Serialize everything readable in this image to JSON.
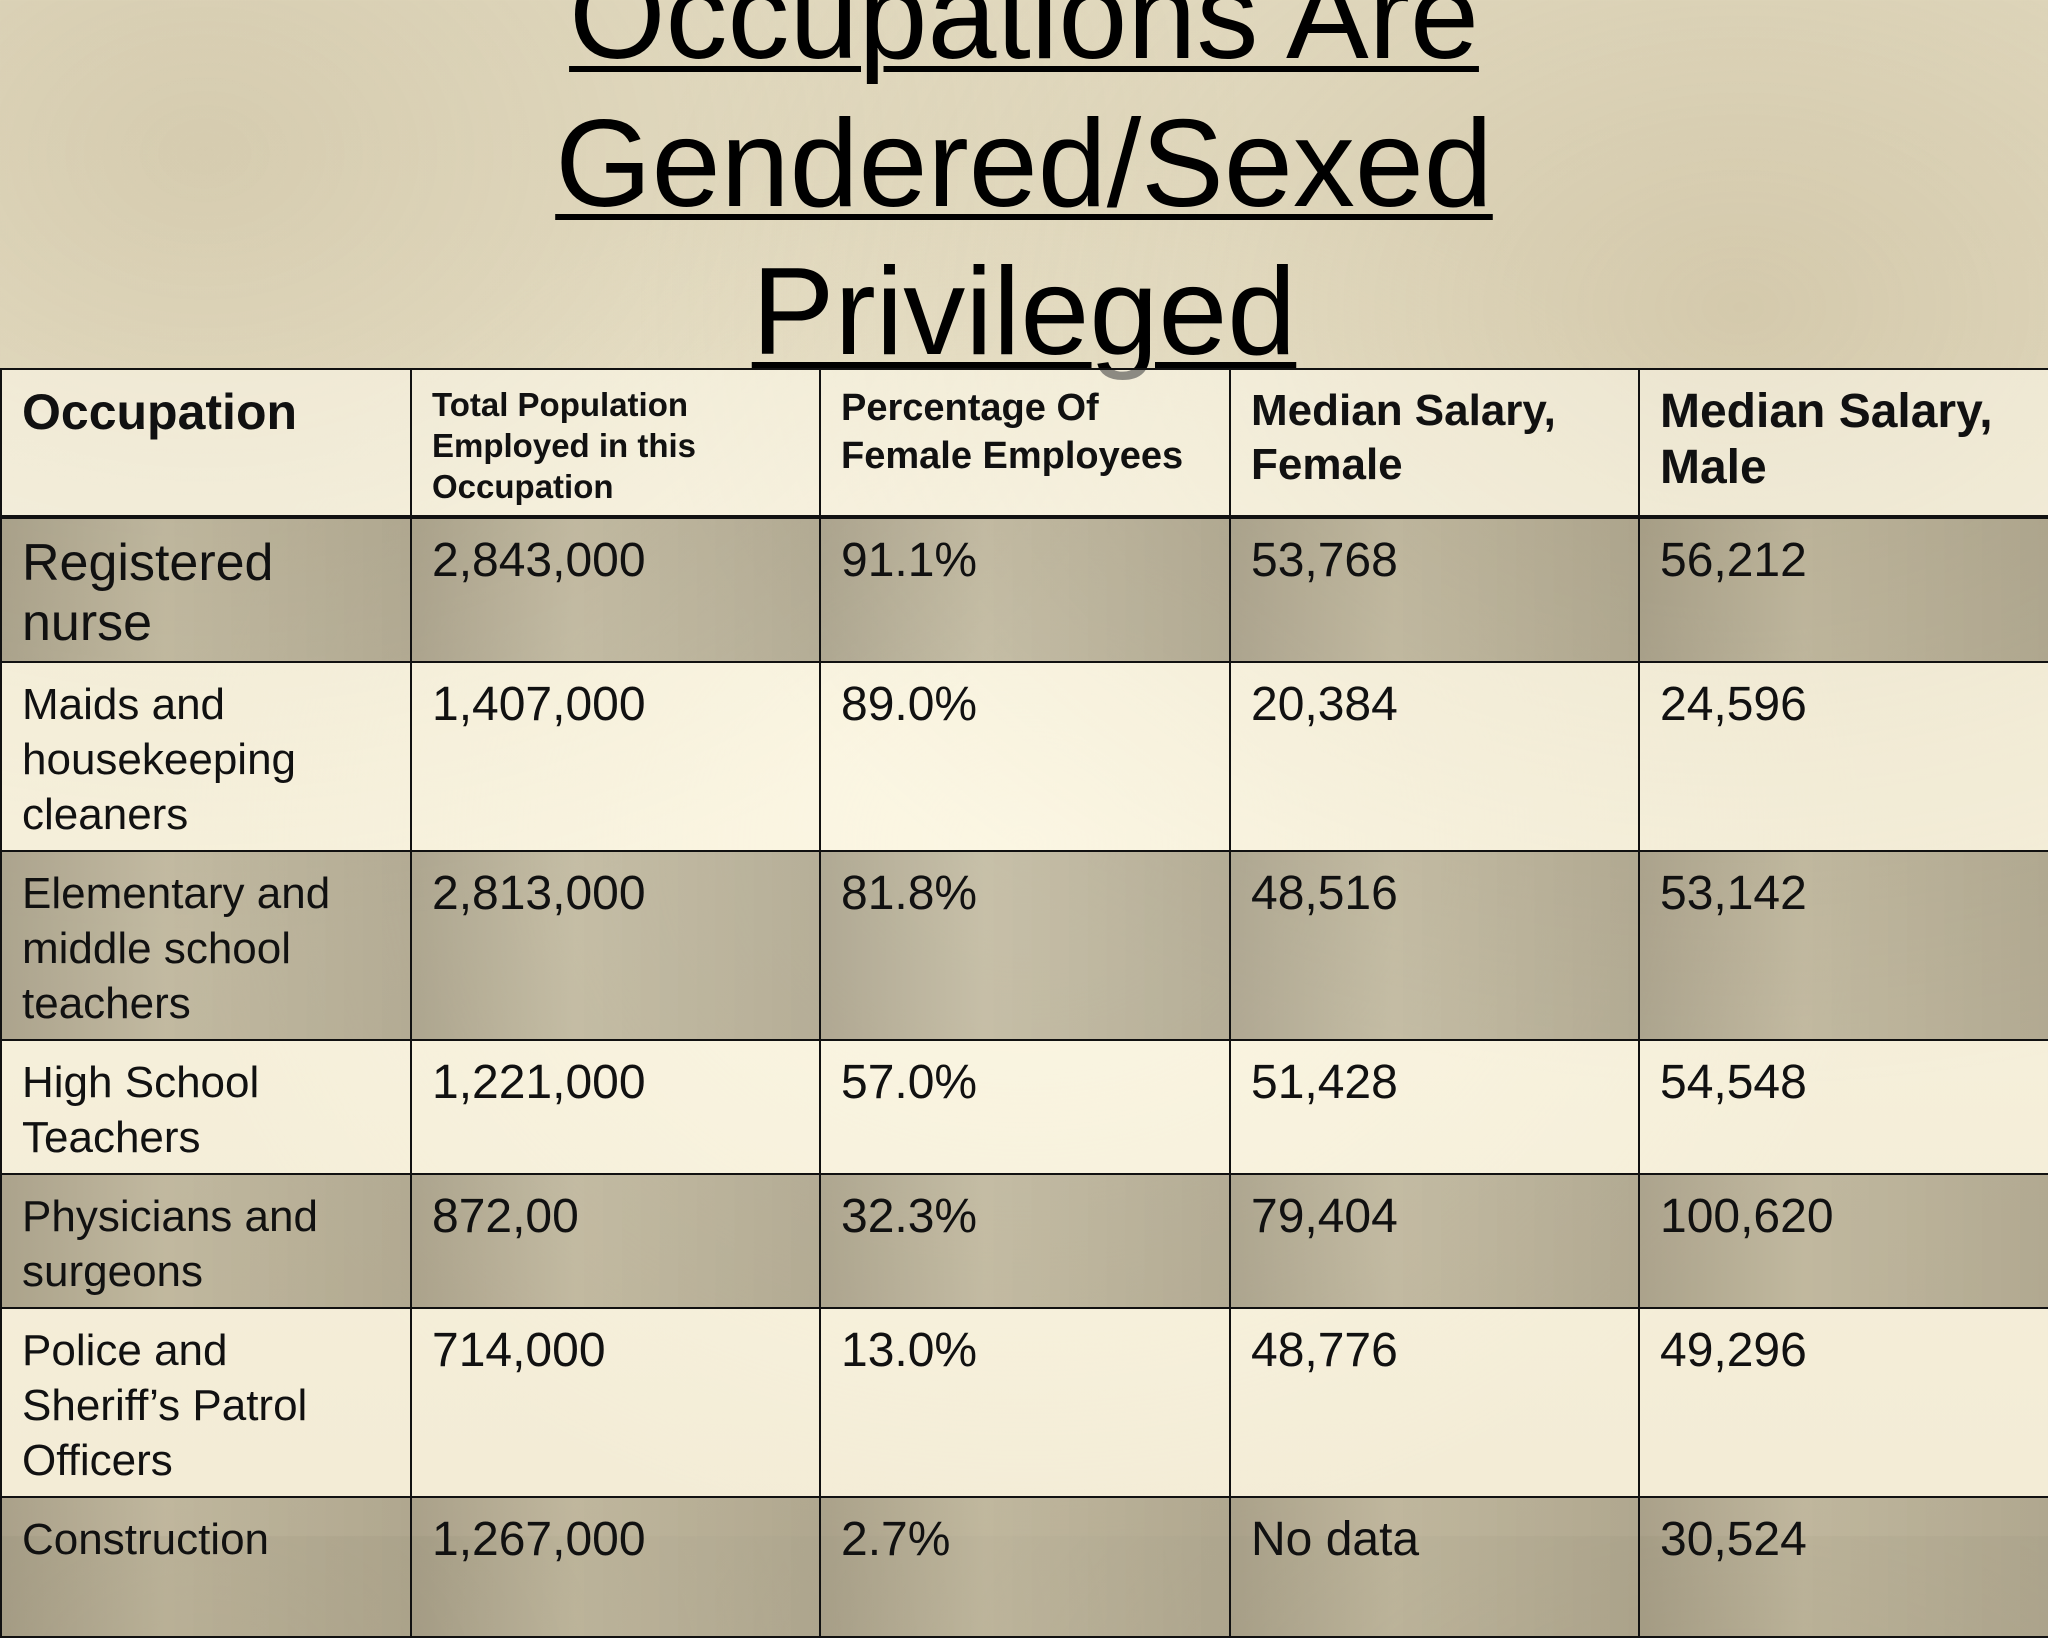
{
  "title": {
    "line1": "Occupations Are",
    "line2": "Gendered/Sexed",
    "line3": "Privileged"
  },
  "table": {
    "headers": [
      "Occupation",
      "Total Population Employed in this Occupation",
      "Percentage Of Female Employees",
      "Median Salary, Female",
      "Median Salary, Male"
    ],
    "rows": [
      [
        "Registered nurse",
        "2,843,000",
        "91.1%",
        "53,768",
        "56,212"
      ],
      [
        "Maids and housekeeping cleaners",
        "1,407,000",
        "89.0%",
        "20,384",
        "24,596"
      ],
      [
        "Elementary and middle school teachers",
        "2,813,000",
        "81.8%",
        "48,516",
        "53,142"
      ],
      [
        "High School Teachers",
        "1,221,000",
        "57.0%",
        "51,428",
        "54,548"
      ],
      [
        "Physicians and surgeons",
        "872,00",
        "32.3%",
        "79,404",
        "100,620"
      ],
      [
        "Police and Sheriff’s Patrol Officers",
        "714,000",
        "13.0%",
        "48,776",
        "49,296"
      ],
      [
        "Construction",
        "1,267,000",
        "2.7%",
        "No data",
        "30,524"
      ]
    ]
  }
}
